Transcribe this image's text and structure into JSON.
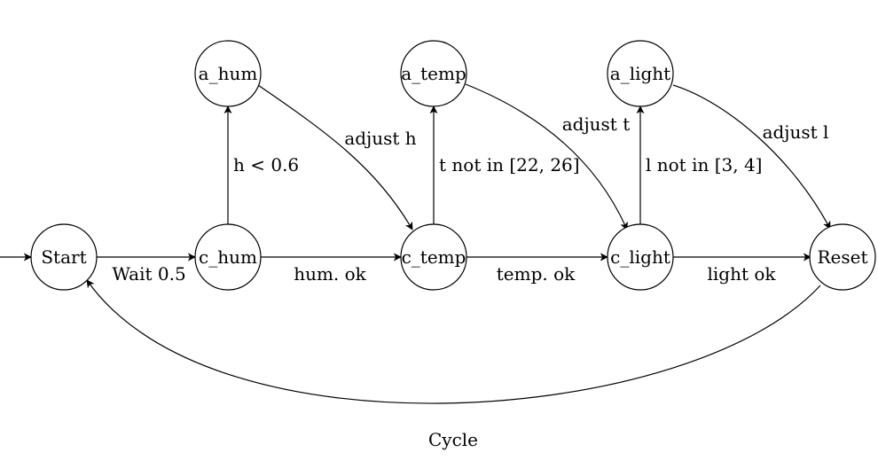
{
  "nodes": {
    "start": "Start",
    "c_hum": "c_hum",
    "c_temp": "c_temp",
    "c_light": "c_light",
    "reset": "Reset",
    "a_hum": "a_hum",
    "a_temp": "a_temp",
    "a_light": "a_light"
  },
  "edges": {
    "wait": "Wait 0.5",
    "hum_ok": "hum. ok",
    "temp_ok": "temp. ok",
    "light_ok": "light ok",
    "h_low": "h < 0.6",
    "t_range": "t not in [22, 26]",
    "l_range": "l not in [3, 4]",
    "adjust_h": "adjust h",
    "adjust_t": "adjust t",
    "adjust_l": "adjust l",
    "cycle": "Cycle"
  }
}
